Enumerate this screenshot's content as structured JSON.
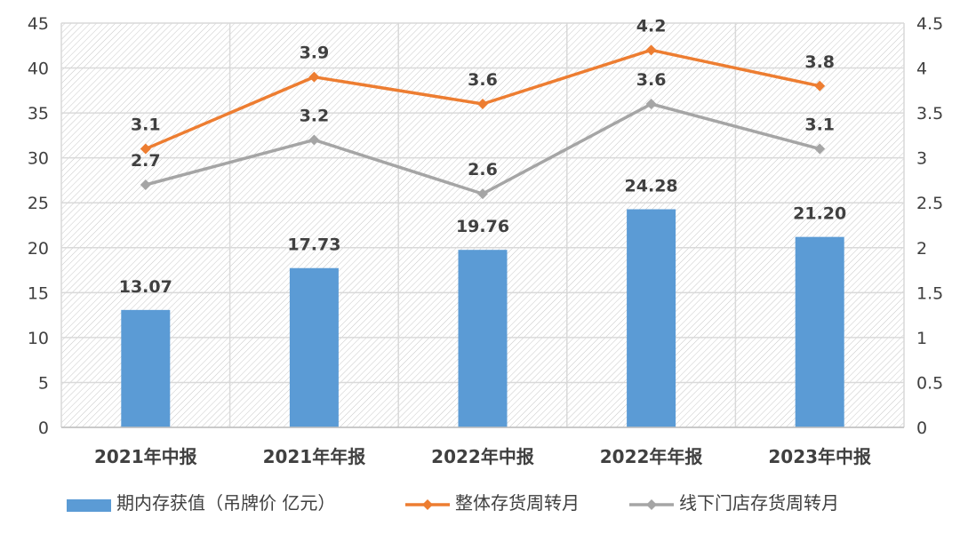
{
  "chart_data": {
    "type": "bar+line",
    "categories": [
      "2021年中报",
      "2021年年报",
      "2022年中报",
      "2022年年报",
      "2023年中报"
    ],
    "left_axis": {
      "ylim": [
        0,
        45
      ],
      "ticks": [
        "0",
        "5",
        "10",
        "15",
        "20",
        "25",
        "30",
        "35",
        "40",
        "45"
      ]
    },
    "right_axis": {
      "ylim": [
        0,
        4.5
      ],
      "ticks": [
        "0",
        "0.5",
        "1",
        "1.5",
        "2",
        "2.5",
        "3",
        "3.5",
        "4",
        "4.5"
      ]
    },
    "series": [
      {
        "name": "期内存获值（吊牌价 亿元）",
        "type": "bar",
        "axis": "left",
        "color": "#5B9BD5",
        "values": [
          13.07,
          17.73,
          19.76,
          24.28,
          21.2
        ],
        "labels": [
          "13.07",
          "17.73",
          "19.76",
          "24.28",
          "21.20"
        ]
      },
      {
        "name": "整体存货周转月",
        "type": "line",
        "axis": "right",
        "color": "#ED7D31",
        "values": [
          3.1,
          3.9,
          3.6,
          4.2,
          3.8
        ],
        "labels": [
          "3.1",
          "3.9",
          "3.6",
          "4.2",
          "3.8"
        ]
      },
      {
        "name": "线下门店存货周转月",
        "type": "line",
        "axis": "right",
        "color": "#A5A5A5",
        "values": [
          2.7,
          3.2,
          2.6,
          3.6,
          3.1
        ],
        "labels": [
          "2.7",
          "3.2",
          "2.6",
          "3.6",
          "3.1"
        ]
      }
    ],
    "legend": "bottom",
    "grid": true,
    "plot_background": "hatched"
  }
}
